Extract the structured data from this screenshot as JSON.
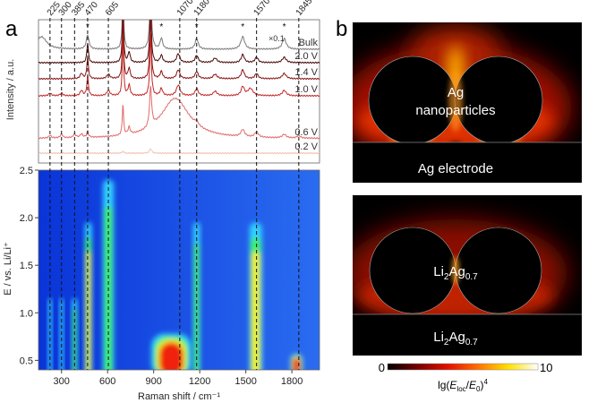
{
  "panel_labels": {
    "a": "a",
    "b": "b"
  },
  "chart_data": [
    {
      "type": "line",
      "panel": "a-top",
      "ylabel": "Intensity / a.u.",
      "xlim": [
        150,
        1980
      ],
      "grid": false,
      "peak_markers": [
        225,
        300,
        385,
        470,
        605,
        1070,
        1180,
        1570,
        1845
      ],
      "scale_note": "×0.1",
      "asterisk_positions": [
        470,
        950,
        1180,
        1480,
        1750
      ],
      "series": [
        {
          "name": "Bulk",
          "color": "#7a7a7a",
          "offset": 0,
          "peaks": [
            [
              170,
              14,
              40
            ],
            [
              470,
              16,
              10
            ],
            [
              700,
              60,
              6
            ],
            [
              880,
              60,
              8
            ],
            [
              950,
              12,
              10
            ],
            [
              1180,
              12,
              12
            ],
            [
              1480,
              14,
              15
            ],
            [
              1750,
              12,
              15
            ]
          ]
        },
        {
          "name": "2.0 V",
          "color": "#4a0606",
          "offset": 1,
          "peaks": [
            [
              470,
              22,
              6
            ],
            [
              700,
              70,
              5
            ],
            [
              740,
              12,
              8
            ],
            [
              880,
              70,
              6
            ],
            [
              950,
              8,
              10
            ],
            [
              1060,
              10,
              12
            ],
            [
              1180,
              8,
              12
            ],
            [
              1300,
              5,
              15
            ],
            [
              1480,
              9,
              12
            ],
            [
              1570,
              6,
              12
            ],
            [
              1750,
              6,
              15
            ]
          ]
        },
        {
          "name": "1.4 V",
          "color": "#8a1414",
          "offset": 2,
          "peaks": [
            [
              430,
              6,
              10
            ],
            [
              470,
              24,
              6
            ],
            [
              605,
              5,
              12
            ],
            [
              700,
              70,
              5
            ],
            [
              740,
              12,
              8
            ],
            [
              880,
              70,
              6
            ],
            [
              950,
              8,
              10
            ],
            [
              1060,
              10,
              12
            ],
            [
              1180,
              8,
              12
            ],
            [
              1300,
              5,
              15
            ],
            [
              1480,
              10,
              12
            ],
            [
              1570,
              6,
              12
            ],
            [
              1750,
              6,
              15
            ]
          ]
        },
        {
          "name": "1.0 V",
          "color": "#c42626",
          "offset": 3,
          "peaks": [
            [
              225,
              3,
              10
            ],
            [
              300,
              3,
              10
            ],
            [
              430,
              6,
              10
            ],
            [
              470,
              22,
              6
            ],
            [
              605,
              6,
              12
            ],
            [
              700,
              70,
              5
            ],
            [
              740,
              12,
              8
            ],
            [
              880,
              70,
              6
            ],
            [
              950,
              8,
              10
            ],
            [
              1060,
              12,
              14
            ],
            [
              1180,
              8,
              12
            ],
            [
              1300,
              5,
              15
            ],
            [
              1480,
              10,
              12
            ],
            [
              1530,
              8,
              20
            ],
            [
              1750,
              6,
              15
            ]
          ]
        },
        {
          "name": "0.6 V",
          "color": "#e06a6a",
          "offset": 4,
          "peaks": [
            [
              225,
              3,
              10
            ],
            [
              300,
              4,
              10
            ],
            [
              385,
              4,
              10
            ],
            [
              430,
              4,
              10
            ],
            [
              470,
              7,
              6
            ],
            [
              700,
              35,
              5
            ],
            [
              740,
              8,
              8
            ],
            [
              880,
              45,
              8
            ],
            [
              1040,
              45,
              110
            ],
            [
              1180,
              4,
              12
            ],
            [
              1480,
              8,
              14
            ],
            [
              1570,
              6,
              14
            ],
            [
              1750,
              4,
              15
            ],
            [
              1845,
              3,
              12
            ]
          ]
        },
        {
          "name": "0.2 V",
          "color": "#f0c4b4",
          "offset": 5,
          "peaks": [
            [
              700,
              2,
              6
            ],
            [
              880,
              5,
              8
            ]
          ]
        }
      ]
    },
    {
      "type": "heatmap",
      "panel": "a-bottom",
      "xlabel": "Raman shift / cm⁻¹",
      "ylabel": "E / vs. Li/Li⁺",
      "xlim": [
        150,
        1980
      ],
      "ylim": [
        0.4,
        2.5
      ],
      "xticks": [
        300,
        600,
        900,
        1200,
        1500,
        1800
      ],
      "yticks": [
        "0.5",
        "1.0",
        "1.5",
        "2.0",
        "2.5"
      ],
      "colormap": [
        "#1040e0",
        "#30d0ff",
        "#40f070",
        "#f0f020",
        "#f02010"
      ],
      "features": [
        {
          "x": 225,
          "halfwidth": 12,
          "e_min": 0.4,
          "e_max": 1.15,
          "level": 1
        },
        {
          "x": 300,
          "halfwidth": 12,
          "e_min": 0.4,
          "e_max": 1.15,
          "level": 1
        },
        {
          "x": 385,
          "halfwidth": 16,
          "e_min": 0.4,
          "e_max": 1.15,
          "level": 2
        },
        {
          "x": 475,
          "halfwidth": 22,
          "e_min": 0.4,
          "e_max": 1.95,
          "level": 3
        },
        {
          "x": 605,
          "halfwidth": 35,
          "e_min": 0.4,
          "e_max": 2.4,
          "level": 2
        },
        {
          "x": 1015,
          "halfwidth": 130,
          "e_min": 0.4,
          "e_max": 0.78,
          "level": 4
        },
        {
          "x": 1180,
          "halfwidth": 22,
          "e_min": 0.4,
          "e_max": 1.95,
          "level": 2
        },
        {
          "x": 1565,
          "halfwidth": 40,
          "e_min": 0.4,
          "e_max": 1.95,
          "level": 3
        },
        {
          "x": 1830,
          "halfwidth": 40,
          "e_min": 0.4,
          "e_max": 0.57,
          "level": 4
        }
      ]
    }
  ],
  "panel_b": {
    "top_label_line1": "Ag",
    "top_label_line2": "nanoparticles",
    "top_substrate": "Ag electrode",
    "bottom_label_main": "Li",
    "bottom_label_sub1": "2",
    "bottom_label_main2": "Ag",
    "bottom_label_sub2": "0.7",
    "colorbar_min": "0",
    "colorbar_max": "10",
    "colorbar_label_prefix": "lg(",
    "colorbar_label_eloc": "E",
    "colorbar_label_eloc_sub": "loc",
    "colorbar_label_slash": "/",
    "colorbar_label_e0": "E",
    "colorbar_label_e0_sub": "0",
    "colorbar_label_suffix": ")",
    "colorbar_label_power": "4",
    "colormap": [
      "#000000",
      "#700000",
      "#e01000",
      "#ff7000",
      "#ffe000",
      "#ffffff"
    ]
  }
}
